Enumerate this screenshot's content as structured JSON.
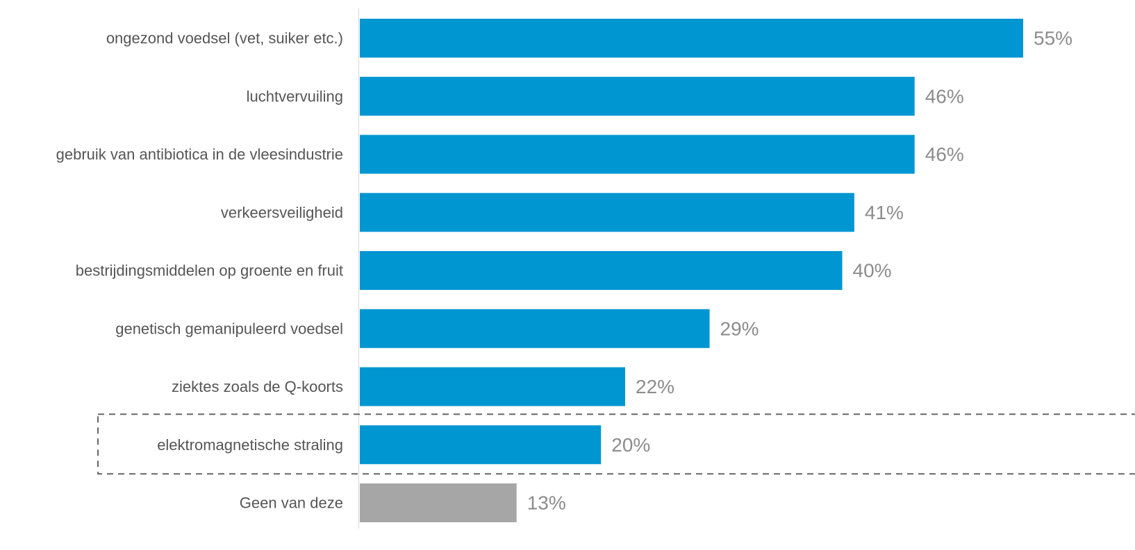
{
  "chart_data": {
    "type": "bar",
    "orientation": "horizontal",
    "categories": [
      "ongezond voedsel (vet, suiker etc.)",
      "luchtvervuiling",
      "gebruik van antibiotica in de vleesindustrie",
      "verkeersveiligheid",
      "bestrijdingsmiddelen op groente en fruit",
      "genetisch gemanipuleerd voedsel",
      "ziektes zoals de Q-koorts",
      "elektromagnetische straling",
      "Geen van deze"
    ],
    "values": [
      55,
      46,
      46,
      41,
      40,
      29,
      22,
      20,
      13
    ],
    "value_labels": [
      "55%",
      "46%",
      "46%",
      "41%",
      "40%",
      "29%",
      "22%",
      "20%",
      "13%"
    ],
    "colors": {
      "default": "#0096d2",
      "Geen van deze": "#a6a6a6",
      "highlight_box": "#666666",
      "axis": "#d9d9d9"
    },
    "highlighted_category": "elektromagnetische straling",
    "xlim": [
      0,
      55
    ],
    "grid": false,
    "legend": "none",
    "title": "",
    "xlabel": "",
    "ylabel": ""
  }
}
